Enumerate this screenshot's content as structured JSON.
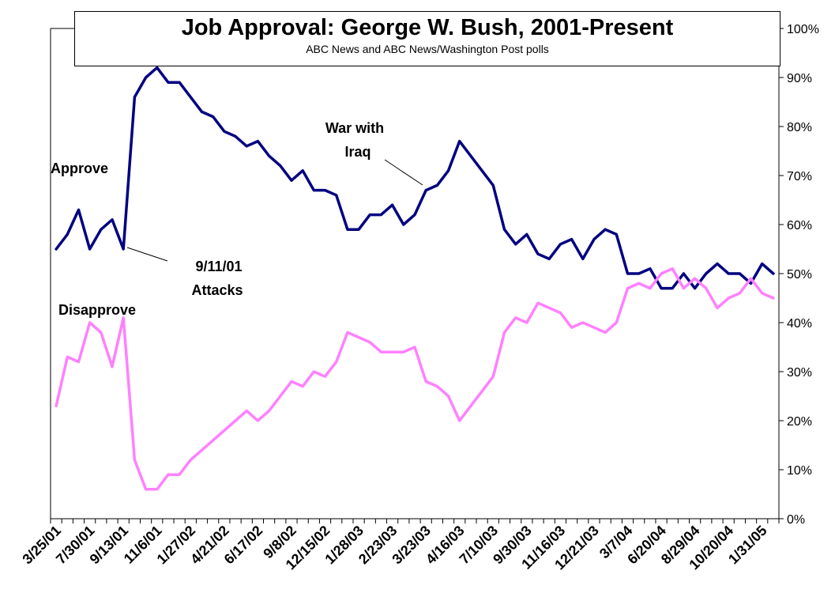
{
  "chart_data": {
    "type": "line",
    "title": "Job Approval: George W. Bush, 2001-Present",
    "subtitle": "ABC News and ABC News/Washington Post polls",
    "ylim": [
      0,
      100
    ],
    "y_ticks": [
      "0%",
      "10%",
      "20%",
      "30%",
      "40%",
      "50%",
      "60%",
      "70%",
      "80%",
      "90%",
      "100%"
    ],
    "y_axis_side": "right",
    "x_tick_labels": [
      "3/25/01",
      "7/30/01",
      "9/13/01",
      "11/6/01",
      "1/27/02",
      "4/21/02",
      "6/17/02",
      "9/8/02",
      "12/15/02",
      "1/28/03",
      "2/23/03",
      "3/23/03",
      "4/16/03",
      "7/10/03",
      "9/30/03",
      "11/16/03",
      "12/21/03",
      "3/7/04",
      "6/20/04",
      "8/29/04",
      "10/20/04",
      "1/31/05"
    ],
    "grid": false,
    "colors": {
      "approve": "#000080",
      "disapprove": "#ff80ff"
    },
    "series": [
      {
        "name": "Approve",
        "values": [
          55,
          58,
          63,
          55,
          59,
          61,
          55,
          86,
          90,
          92,
          89,
          89,
          86,
          83,
          82,
          79,
          78,
          76,
          77,
          74,
          72,
          69,
          71,
          67,
          67,
          66,
          59,
          59,
          62,
          62,
          64,
          60,
          62,
          67,
          68,
          71,
          77,
          74,
          71,
          68,
          59,
          56,
          58,
          54,
          53,
          56,
          57,
          53,
          57,
          59,
          58,
          50,
          50,
          51,
          47,
          47,
          50,
          47,
          50,
          52,
          50,
          50,
          48,
          52,
          50
        ]
      },
      {
        "name": "Disapprove",
        "values": [
          23,
          33,
          32,
          40,
          38,
          31,
          41,
          12,
          6,
          6,
          9,
          9,
          12,
          14,
          16,
          18,
          20,
          22,
          20,
          22,
          25,
          28,
          27,
          30,
          29,
          32,
          38,
          37,
          36,
          34,
          34,
          34,
          35,
          28,
          27,
          25,
          20,
          23,
          26,
          29,
          38,
          41,
          40,
          44,
          43,
          42,
          39,
          40,
          39,
          38,
          40,
          47,
          48,
          47,
          50,
          51,
          47,
          49,
          47,
          43,
          45,
          46,
          49,
          46,
          45
        ]
      }
    ],
    "annotations": {
      "approve": "Approve",
      "disapprove": "Disapprove",
      "attack_line1": "9/11/01",
      "attack_line2": "Attacks",
      "war_line1": "War with",
      "war_line2": "Iraq"
    }
  }
}
